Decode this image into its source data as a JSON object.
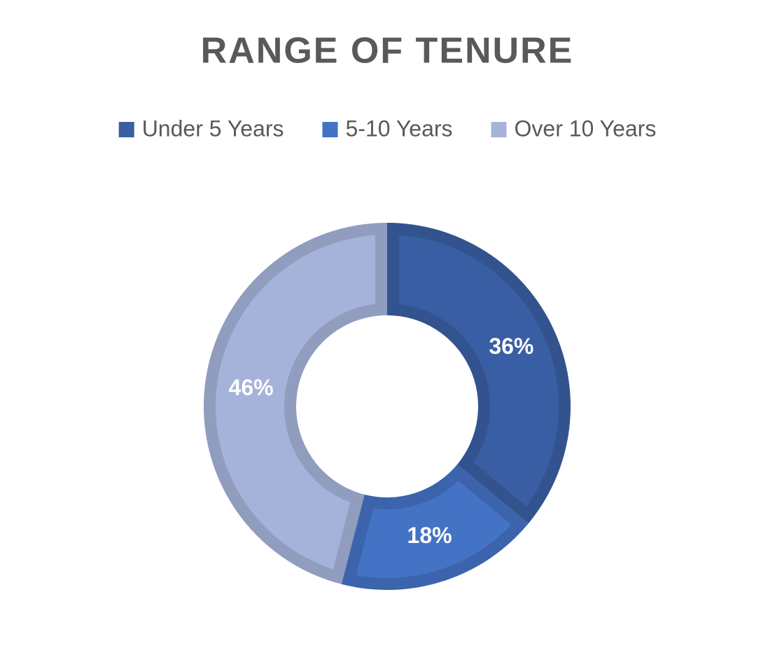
{
  "chart_data": {
    "type": "donut",
    "title": "RANGE OF TENURE",
    "categories": [
      "Under 5 Years",
      "5-10 Years",
      "Over 10 Years"
    ],
    "values": [
      36,
      18,
      46
    ],
    "value_labels": [
      "36%",
      "18%",
      "46%"
    ],
    "colors": [
      "#3a5ea3",
      "#4472c4",
      "#a5b2d9"
    ]
  }
}
